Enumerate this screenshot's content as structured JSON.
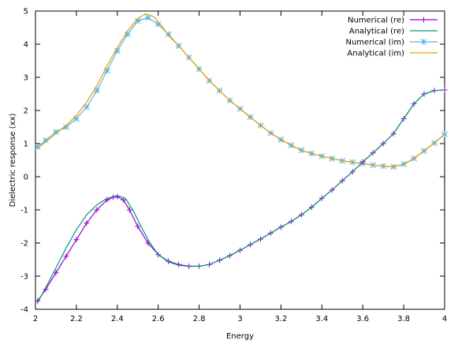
{
  "chart_data": {
    "type": "line",
    "title": "",
    "xlabel": "Energy",
    "ylabel": "Dielectric response (xx)",
    "xlim": [
      2.0,
      4.0
    ],
    "ylim": [
      -4,
      5
    ],
    "x_ticks": [
      2.0,
      2.2,
      2.4,
      2.6,
      2.8,
      3.0,
      3.2,
      3.4,
      3.6,
      3.8,
      4.0
    ],
    "x_tick_labels": [
      "2",
      "2.2",
      "2.4",
      "2.6",
      "2.8",
      "3",
      "3.2",
      "3.4",
      "3.6",
      "3.8",
      "4"
    ],
    "y_ticks": [
      -4,
      -3,
      -2,
      -1,
      0,
      1,
      2,
      3,
      4,
      5
    ],
    "y_tick_labels": [
      "-4",
      "-3",
      "-2",
      "-1",
      "0",
      "1",
      "2",
      "3",
      "4",
      "5"
    ],
    "grid": false,
    "legend_position": "top-right",
    "series": [
      {
        "name": "Numerical (re)",
        "color": "#9400d3",
        "marker": "plus",
        "style": "line+markers",
        "points": [
          [
            2.01,
            -3.75
          ],
          [
            2.05,
            -3.4
          ],
          [
            2.1,
            -2.9
          ],
          [
            2.15,
            -2.4
          ],
          [
            2.2,
            -1.9
          ],
          [
            2.25,
            -1.4
          ],
          [
            2.3,
            -1.0
          ],
          [
            2.35,
            -0.7
          ],
          [
            2.38,
            -0.62
          ],
          [
            2.4,
            -0.6
          ],
          [
            2.43,
            -0.7
          ],
          [
            2.46,
            -1.0
          ],
          [
            2.5,
            -1.5
          ],
          [
            2.55,
            -2.0
          ],
          [
            2.6,
            -2.35
          ],
          [
            2.65,
            -2.55
          ],
          [
            2.7,
            -2.65
          ],
          [
            2.75,
            -2.7
          ],
          [
            2.8,
            -2.7
          ],
          [
            2.85,
            -2.65
          ],
          [
            2.9,
            -2.52
          ],
          [
            2.95,
            -2.38
          ],
          [
            3.0,
            -2.22
          ],
          [
            3.05,
            -2.05
          ],
          [
            3.1,
            -1.88
          ],
          [
            3.15,
            -1.7
          ],
          [
            3.2,
            -1.52
          ],
          [
            3.25,
            -1.35
          ],
          [
            3.3,
            -1.15
          ],
          [
            3.35,
            -0.92
          ],
          [
            3.4,
            -0.65
          ],
          [
            3.45,
            -0.4
          ],
          [
            3.5,
            -0.12
          ],
          [
            3.55,
            0.15
          ],
          [
            3.6,
            0.45
          ],
          [
            3.65,
            0.72
          ],
          [
            3.7,
            1.0
          ],
          [
            3.75,
            1.3
          ],
          [
            3.8,
            1.75
          ],
          [
            3.85,
            2.2
          ],
          [
            3.9,
            2.5
          ],
          [
            3.95,
            2.6
          ],
          [
            4.0,
            2.62
          ]
        ]
      },
      {
        "name": "Analytical (re)",
        "color": "#009e73",
        "marker": "none",
        "style": "line",
        "points": [
          [
            2.01,
            -3.8
          ],
          [
            2.05,
            -3.35
          ],
          [
            2.1,
            -2.75
          ],
          [
            2.15,
            -2.15
          ],
          [
            2.2,
            -1.6
          ],
          [
            2.25,
            -1.15
          ],
          [
            2.3,
            -0.85
          ],
          [
            2.35,
            -0.65
          ],
          [
            2.4,
            -0.57
          ],
          [
            2.44,
            -0.65
          ],
          [
            2.48,
            -1.05
          ],
          [
            2.52,
            -1.55
          ],
          [
            2.56,
            -2.0
          ],
          [
            2.6,
            -2.35
          ],
          [
            2.65,
            -2.57
          ],
          [
            2.7,
            -2.67
          ],
          [
            2.75,
            -2.71
          ],
          [
            2.8,
            -2.7
          ],
          [
            2.85,
            -2.65
          ],
          [
            2.9,
            -2.52
          ],
          [
            2.95,
            -2.38
          ],
          [
            3.0,
            -2.22
          ],
          [
            3.05,
            -2.05
          ],
          [
            3.1,
            -1.88
          ],
          [
            3.15,
            -1.7
          ],
          [
            3.2,
            -1.52
          ],
          [
            3.25,
            -1.35
          ],
          [
            3.3,
            -1.15
          ],
          [
            3.35,
            -0.92
          ],
          [
            3.4,
            -0.65
          ],
          [
            3.45,
            -0.4
          ],
          [
            3.5,
            -0.12
          ],
          [
            3.55,
            0.15
          ],
          [
            3.6,
            0.45
          ],
          [
            3.65,
            0.72
          ],
          [
            3.7,
            1.0
          ],
          [
            3.75,
            1.3
          ],
          [
            3.8,
            1.75
          ],
          [
            3.85,
            2.2
          ],
          [
            3.9,
            2.5
          ],
          [
            3.95,
            2.6
          ],
          [
            4.0,
            2.62
          ]
        ]
      },
      {
        "name": "Numerical (im)",
        "color": "#56b4e9",
        "marker": "star",
        "style": "line+markers",
        "points": [
          [
            2.01,
            0.9
          ],
          [
            2.05,
            1.1
          ],
          [
            2.1,
            1.35
          ],
          [
            2.15,
            1.5
          ],
          [
            2.2,
            1.75
          ],
          [
            2.25,
            2.1
          ],
          [
            2.3,
            2.6
          ],
          [
            2.35,
            3.2
          ],
          [
            2.4,
            3.8
          ],
          [
            2.45,
            4.3
          ],
          [
            2.5,
            4.7
          ],
          [
            2.55,
            4.8
          ],
          [
            2.6,
            4.6
          ],
          [
            2.65,
            4.3
          ],
          [
            2.7,
            3.95
          ],
          [
            2.75,
            3.6
          ],
          [
            2.8,
            3.25
          ],
          [
            2.85,
            2.9
          ],
          [
            2.9,
            2.6
          ],
          [
            2.95,
            2.3
          ],
          [
            3.0,
            2.05
          ],
          [
            3.05,
            1.8
          ],
          [
            3.1,
            1.55
          ],
          [
            3.15,
            1.32
          ],
          [
            3.2,
            1.12
          ],
          [
            3.25,
            0.95
          ],
          [
            3.3,
            0.8
          ],
          [
            3.35,
            0.7
          ],
          [
            3.4,
            0.62
          ],
          [
            3.45,
            0.55
          ],
          [
            3.5,
            0.48
          ],
          [
            3.55,
            0.44
          ],
          [
            3.6,
            0.4
          ],
          [
            3.65,
            0.35
          ],
          [
            3.7,
            0.32
          ],
          [
            3.75,
            0.3
          ],
          [
            3.8,
            0.38
          ],
          [
            3.85,
            0.55
          ],
          [
            3.9,
            0.78
          ],
          [
            3.95,
            1.02
          ],
          [
            4.0,
            1.28
          ]
        ]
      },
      {
        "name": "Analytical (im)",
        "color": "#e69f00",
        "marker": "none",
        "style": "line",
        "points": [
          [
            2.01,
            0.85
          ],
          [
            2.05,
            1.05
          ],
          [
            2.1,
            1.3
          ],
          [
            2.15,
            1.55
          ],
          [
            2.2,
            1.85
          ],
          [
            2.25,
            2.25
          ],
          [
            2.3,
            2.75
          ],
          [
            2.35,
            3.35
          ],
          [
            2.4,
            3.9
          ],
          [
            2.45,
            4.4
          ],
          [
            2.5,
            4.78
          ],
          [
            2.54,
            4.92
          ],
          [
            2.58,
            4.82
          ],
          [
            2.62,
            4.52
          ],
          [
            2.66,
            4.2
          ],
          [
            2.7,
            3.95
          ],
          [
            2.75,
            3.6
          ],
          [
            2.8,
            3.25
          ],
          [
            2.85,
            2.9
          ],
          [
            2.9,
            2.6
          ],
          [
            2.95,
            2.3
          ],
          [
            3.0,
            2.05
          ],
          [
            3.05,
            1.8
          ],
          [
            3.1,
            1.55
          ],
          [
            3.15,
            1.32
          ],
          [
            3.2,
            1.12
          ],
          [
            3.25,
            0.95
          ],
          [
            3.3,
            0.8
          ],
          [
            3.35,
            0.7
          ],
          [
            3.4,
            0.62
          ],
          [
            3.45,
            0.55
          ],
          [
            3.5,
            0.48
          ],
          [
            3.55,
            0.44
          ],
          [
            3.6,
            0.4
          ],
          [
            3.65,
            0.35
          ],
          [
            3.7,
            0.32
          ],
          [
            3.75,
            0.3
          ],
          [
            3.8,
            0.38
          ],
          [
            3.85,
            0.55
          ],
          [
            3.9,
            0.78
          ],
          [
            3.95,
            1.02
          ],
          [
            4.0,
            1.28
          ]
        ]
      }
    ]
  }
}
